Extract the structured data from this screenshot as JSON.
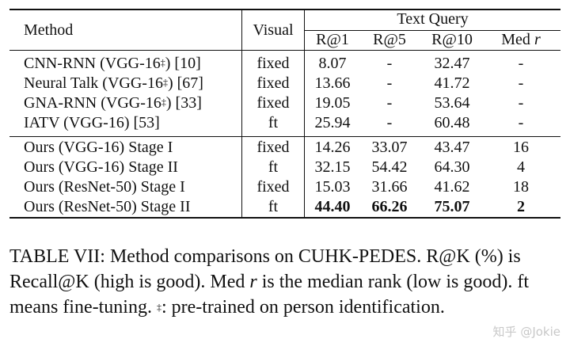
{
  "table": {
    "header": {
      "method": "Method",
      "visual": "Visual",
      "group": "Text Query",
      "metrics": [
        "R@1",
        "R@5",
        "R@10"
      ],
      "med_prefix": "Med",
      "med_var": "r"
    },
    "rows": [
      {
        "name": "CNN-RNN (VGG-16",
        "mark": "‡",
        "ref": ") [10]",
        "visual": "fixed",
        "r1": "8.07",
        "r5": "-",
        "r10": "32.47",
        "med": "-"
      },
      {
        "name": "Neural Talk (VGG-16",
        "mark": "‡",
        "ref": ") [67]",
        "visual": "fixed",
        "r1": "13.66",
        "r5": "-",
        "r10": "41.72",
        "med": "-"
      },
      {
        "name": "GNA-RNN (VGG-16",
        "mark": "‡",
        "ref": ") [33]",
        "visual": "fixed",
        "r1": "19.05",
        "r5": "-",
        "r10": "53.64",
        "med": "-"
      },
      {
        "name": "IATV (VGG-16) [53]",
        "mark": "",
        "ref": "",
        "visual": "ft",
        "r1": "25.94",
        "r5": "-",
        "r10": "60.48",
        "med": "-"
      },
      {
        "name": "Ours (VGG-16) Stage I",
        "mark": "",
        "ref": "",
        "visual": "fixed",
        "r1": "14.26",
        "r5": "33.07",
        "r10": "43.47",
        "med": "16"
      },
      {
        "name": "Ours (VGG-16) Stage II",
        "mark": "",
        "ref": "",
        "visual": "ft",
        "r1": "32.15",
        "r5": "54.42",
        "r10": "64.30",
        "med": "4"
      },
      {
        "name": "Ours (ResNet-50) Stage I",
        "mark": "",
        "ref": "",
        "visual": "fixed",
        "r1": "15.03",
        "r5": "31.66",
        "r10": "41.62",
        "med": "18"
      },
      {
        "name": "Ours (ResNet-50) Stage II",
        "mark": "",
        "ref": "",
        "visual": "ft",
        "r1": "44.40",
        "r5": "66.26",
        "r10": "75.07",
        "med": "2",
        "bold": true
      }
    ]
  },
  "caption": {
    "p1": "TABLE VII: Method comparisons on CUHK-PEDES. R@K (%) is Recall@K (high is good). Med ",
    "var": "r",
    "p2": " is the median rank (low is good). ft means fine-tuning. ",
    "mark": "‡",
    "p3": ": pre-trained on person identification."
  },
  "watermark": "知乎 @Jokie"
}
